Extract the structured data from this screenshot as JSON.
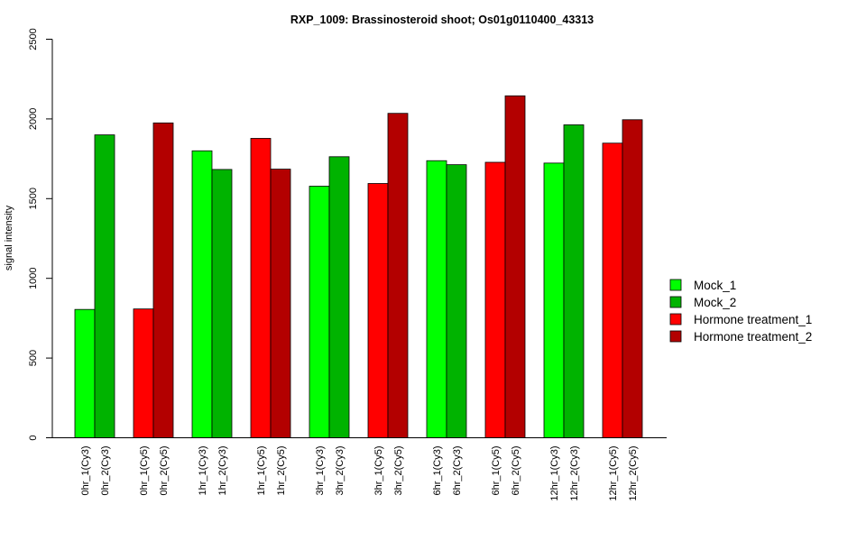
{
  "chart_data": {
    "type": "bar",
    "title": "RXP_1009: Brassinosteroid shoot; Os01g0110400_43313",
    "xlabel": "",
    "ylabel": "signal intensity",
    "ylim": [
      0,
      2500
    ],
    "yticks": [
      0,
      500,
      1000,
      1500,
      2000,
      2500
    ],
    "grid": false,
    "legend_position": "right",
    "categories": [
      "0hr_1(Cy3)",
      "0hr_2(Cy3)",
      "0hr_1(Cy5)",
      "0hr_2(Cy5)",
      "1hr_1(Cy3)",
      "1hr_2(Cy3)",
      "1hr_1(Cy5)",
      "1hr_2(Cy5)",
      "3hr_1(Cy3)",
      "3hr_2(Cy3)",
      "3hr_1(Cy5)",
      "3hr_2(Cy5)",
      "6hr_1(Cy3)",
      "6hr_2(Cy3)",
      "6hr_1(Cy5)",
      "6hr_2(Cy5)",
      "12hr_1(Cy3)",
      "12hr_2(Cy3)",
      "12hr_1(Cy5)",
      "12hr_2(Cy5)"
    ],
    "values": [
      805,
      1900,
      808,
      1975,
      1800,
      1683,
      1878,
      1685,
      1578,
      1763,
      1595,
      2035,
      1738,
      1713,
      1728,
      2145,
      1723,
      1963,
      1848,
      1995
    ],
    "bar_series": [
      0,
      1,
      2,
      3,
      0,
      1,
      2,
      3,
      0,
      1,
      2,
      3,
      0,
      1,
      2,
      3,
      0,
      1,
      2,
      3
    ],
    "series": [
      {
        "name": "Mock_1",
        "color": "#00ff00"
      },
      {
        "name": "Mock_2",
        "color": "#00b300"
      },
      {
        "name": "Hormone treatment_1",
        "color": "#ff0000"
      },
      {
        "name": "Hormone treatment_2",
        "color": "#b30000"
      }
    ]
  }
}
